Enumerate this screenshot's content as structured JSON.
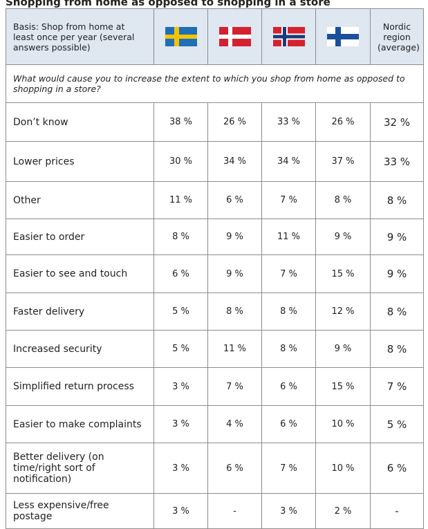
{
  "title": "Shopping from home as opposed to shopping in a store",
  "table": {
    "header": [
      "Basis: Shop from home at least once per year (several answers possible)",
      "Nordic region (average)"
    ],
    "question": "What would cause you to increase the extent to which you shop from home as opposed to shopping in a store?",
    "rows": [
      [
        "Don’t know",
        "38 %",
        "26 %",
        "33 %",
        "26 %",
        "32 %"
      ],
      [
        "Lower prices",
        "30 %",
        "34 %",
        "34 %",
        "37 %",
        "33 %"
      ],
      [
        "Other",
        "11 %",
        "6 %",
        "7 %",
        "8 %",
        "8 %"
      ],
      [
        "Easier to order",
        "8 %",
        "9 %",
        "11 %",
        "9 %",
        "9 %"
      ],
      [
        "Easier to see and touch",
        "6 %",
        "9 %",
        "7 %",
        "15 %",
        "9 %"
      ],
      [
        "Faster delivery",
        "5 %",
        "8 %",
        "8 %",
        "12 %",
        "8 %"
      ],
      [
        "Increased security",
        "5 %",
        "11 %",
        "8 %",
        "9 %",
        "8 %"
      ],
      [
        "Simplified return process",
        "3 %",
        "7 %",
        "6 %",
        "15 %",
        "7 %"
      ],
      [
        "Easier to make complaints",
        "3 %",
        "4 %",
        "6 %",
        "10 %",
        "5 %"
      ],
      [
        "Better delivery (on time/right sort of notification)",
        "3 %",
        "6 %",
        "7 %",
        "10 %",
        "6 %"
      ],
      [
        "Less expensive/free postage",
        "3 %",
        "-",
        "3 %",
        "2 %",
        "-"
      ]
    ]
  }
}
